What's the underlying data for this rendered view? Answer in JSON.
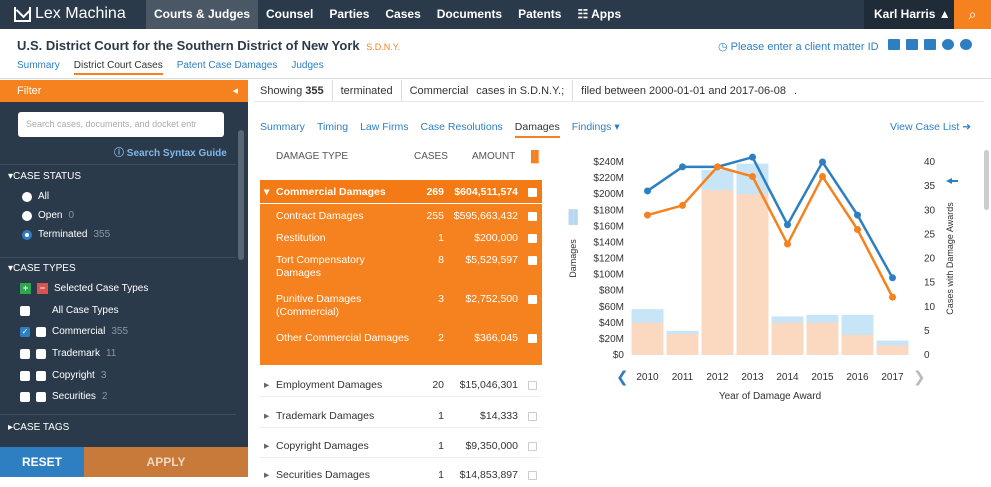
{
  "app": {
    "name": "Lex Machina"
  },
  "nav": {
    "items": [
      "Courts & Judges",
      "Counsel",
      "Parties",
      "Cases",
      "Documents",
      "Patents",
      "Apps"
    ],
    "active": "Courts & Judges",
    "user": "Karl Harris"
  },
  "header": {
    "court": "U.S. District Court for the Southern District of New York",
    "court_abbr": "S.D.N.Y.",
    "client_prompt": "Please enter a client matter ID",
    "subnav": [
      "Summary",
      "District Court Cases",
      "Patent Case Damages",
      "Judges"
    ],
    "subnav_active": "District Court Cases"
  },
  "sidebar": {
    "filter_label": "Filter",
    "search_placeholder": "Search cases, documents, and docket entr",
    "syntax_link": "Search Syntax Guide",
    "case_status_title": "CASE STATUS",
    "status_options": [
      {
        "label": "All",
        "count": ""
      },
      {
        "label": "Open",
        "count": "0"
      },
      {
        "label": "Terminated",
        "count": "355"
      }
    ],
    "case_types_title": "CASE TYPES",
    "selected_case_types": "Selected Case Types",
    "type_options": [
      {
        "label": "All Case Types",
        "count": ""
      },
      {
        "label": "Commercial",
        "count": "355"
      },
      {
        "label": "Trademark",
        "count": "11"
      },
      {
        "label": "Copyright",
        "count": "3"
      },
      {
        "label": "Securities",
        "count": "2"
      }
    ],
    "case_tags_title": "CASE TAGS",
    "reset_label": "RESET",
    "apply_label": "APPLY"
  },
  "showing": {
    "prefix": "Showing",
    "count": "355",
    "status": "terminated",
    "type": "Commercial",
    "scope": "cases in S.D.N.Y.;",
    "range": "filed between 2000-01-01 and 2017-06-08",
    "end": "."
  },
  "tabs": {
    "items": [
      "Summary",
      "Timing",
      "Law Firms",
      "Case Resolutions",
      "Damages",
      "Findings"
    ],
    "active": "Damages",
    "view_list": "View Case List"
  },
  "table": {
    "headers": {
      "type": "DAMAGE TYPE",
      "cases": "CASES",
      "amount": "AMOUNT"
    },
    "rows": [
      {
        "label": "Commercial Damages",
        "cases": "269",
        "amount": "$604,511,574",
        "style": "head"
      },
      {
        "label": "Contract Damages",
        "cases": "255",
        "amount": "$595,663,432",
        "style": "sub"
      },
      {
        "label": "Restitution",
        "cases": "1",
        "amount": "$200,000",
        "style": "sub"
      },
      {
        "label": "Tort Compensatory\nDamages",
        "cases": "8",
        "amount": "$5,529,597",
        "style": "sub"
      },
      {
        "label": "Punitive Damages\n(Commercial)",
        "cases": "3",
        "amount": "$2,752,500",
        "style": "sub"
      },
      {
        "label": "Other Commercial Damages",
        "cases": "2",
        "amount": "$366,045",
        "style": "sub"
      },
      {
        "label": "Employment Damages",
        "cases": "20",
        "amount": "$15,046,301",
        "style": "white"
      },
      {
        "label": "Trademark Damages",
        "cases": "1",
        "amount": "$14,333",
        "style": "white"
      },
      {
        "label": "Copyright Damages",
        "cases": "1",
        "amount": "$9,350,000",
        "style": "white"
      },
      {
        "label": "Securities Damages",
        "cases": "1",
        "amount": "$14,853,897",
        "style": "white"
      }
    ]
  },
  "colors": {
    "orange": "#f5821f",
    "blue": "#2d7fc2",
    "navy": "#2b3a4a",
    "bar_light_blue": "#c8e4f7",
    "bar_peach": "#fbd9c0"
  },
  "chart_data": {
    "type": "bar",
    "categories": [
      "2010",
      "2011",
      "2012",
      "2013",
      "2014",
      "2015",
      "2016",
      "2017"
    ],
    "xlabel": "Year of Damage Award",
    "ylabel": "Damages",
    "y2label": "Cases with Damage Awards",
    "yticks": [
      "$0",
      "$20M",
      "$40M",
      "$60M",
      "$80M",
      "$100M",
      "$120M",
      "$140M",
      "$160M",
      "$180M",
      "$200M",
      "$220M",
      "$240M"
    ],
    "y2ticks": [
      "0",
      "5",
      "10",
      "15",
      "20",
      "25",
      "30",
      "35",
      "40"
    ],
    "ylim": [
      0,
      240
    ],
    "y2lim": [
      0,
      40
    ],
    "series": [
      {
        "kind": "bar",
        "values": [
          57,
          30,
          230,
          238,
          48,
          50,
          50,
          18
        ]
      },
      {
        "kind": "bar",
        "values": [
          40,
          26,
          205,
          200,
          40,
          40,
          25,
          12
        ]
      },
      {
        "kind": "line",
        "values": [
          34,
          39,
          39,
          41,
          27,
          40,
          29,
          16
        ]
      },
      {
        "kind": "line",
        "values": [
          29,
          31,
          39,
          37,
          23,
          37,
          26,
          12
        ]
      }
    ]
  }
}
